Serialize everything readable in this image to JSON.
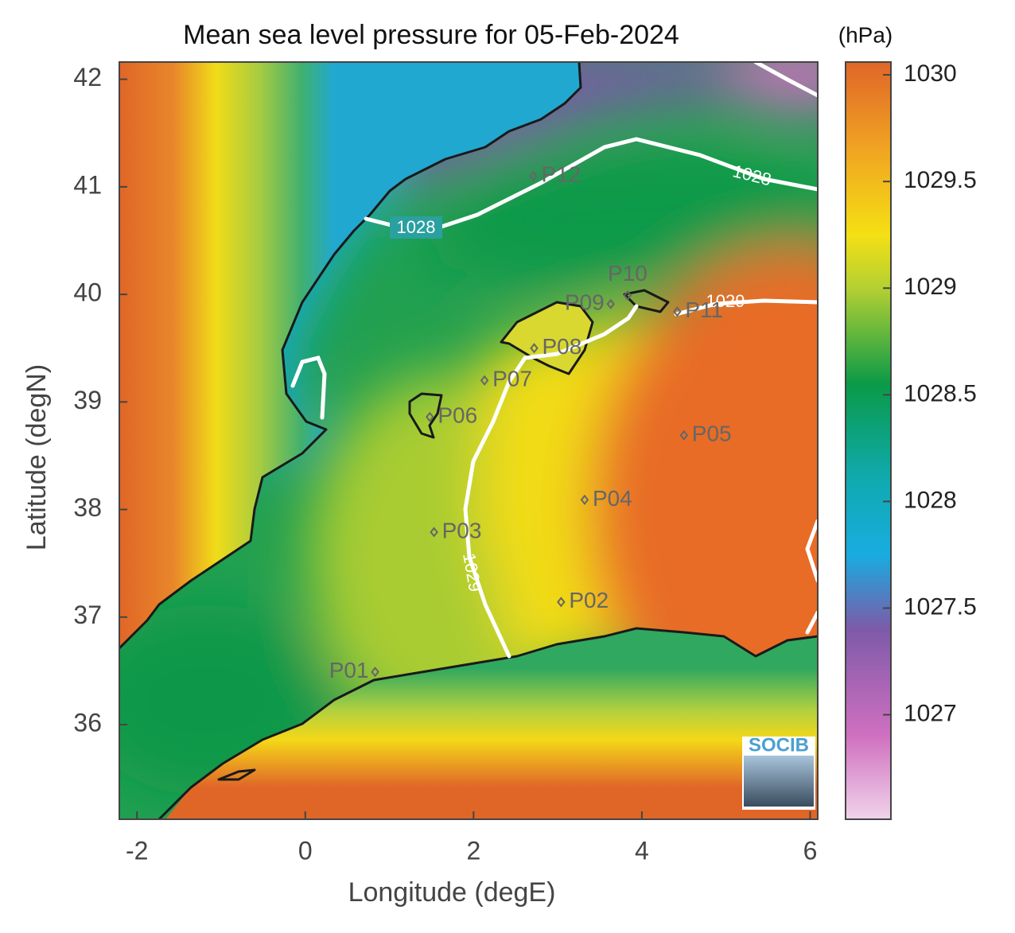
{
  "chart_data": {
    "type": "map",
    "title": "Mean sea level pressure for 05-Feb-2024",
    "xlabel": "Longitude (degE)",
    "ylabel": "Latitude (degN)",
    "xlim": [
      -2.21,
      6.09
    ],
    "ylim": [
      35.12,
      42.16
    ],
    "xticks": [
      -2,
      0,
      2,
      4,
      6
    ],
    "yticks": [
      36,
      37,
      38,
      39,
      40,
      41,
      42
    ],
    "colorbar": {
      "unit": "(hPa)",
      "lim": [
        1026.51,
        1030.06
      ],
      "ticks": [
        1027,
        1027.5,
        1028,
        1028.5,
        1029,
        1029.5,
        1030
      ],
      "colormap": [
        {
          "value": 1026.51,
          "color": "#f0d4ea"
        },
        {
          "value": 1026.9,
          "color": "#d070c0"
        },
        {
          "value": 1027.4,
          "color": "#7d5aa8"
        },
        {
          "value": 1027.75,
          "color": "#18ace0"
        },
        {
          "value": 1028.1,
          "color": "#10aab0"
        },
        {
          "value": 1028.55,
          "color": "#0a9a48"
        },
        {
          "value": 1029,
          "color": "#b4d032"
        },
        {
          "value": 1029.25,
          "color": "#f4e014"
        },
        {
          "value": 1029.65,
          "color": "#f0a422"
        },
        {
          "value": 1030.06,
          "color": "#e06628"
        }
      ]
    },
    "contour_labels": [
      1028,
      1028,
      1029,
      1029
    ],
    "stations": [
      {
        "name": "P01",
        "lon": 0.83,
        "lat": 36.49
      },
      {
        "name": "P02",
        "lon": 3.04,
        "lat": 37.14
      },
      {
        "name": "P03",
        "lon": 1.53,
        "lat": 37.79
      },
      {
        "name": "P04",
        "lon": 3.32,
        "lat": 38.09
      },
      {
        "name": "P05",
        "lon": 4.5,
        "lat": 38.69
      },
      {
        "name": "P06",
        "lon": 1.48,
        "lat": 38.86
      },
      {
        "name": "P07",
        "lon": 2.13,
        "lat": 39.2
      },
      {
        "name": "P08",
        "lon": 2.72,
        "lat": 39.5
      },
      {
        "name": "P09",
        "lon": 3.63,
        "lat": 39.91
      },
      {
        "name": "P10",
        "lon": 3.83,
        "lat": 39.99
      },
      {
        "name": "P11",
        "lon": 4.42,
        "lat": 39.84
      },
      {
        "name": "P12",
        "lon": 2.71,
        "lat": 41.1
      }
    ],
    "logo": "SOCIB"
  }
}
